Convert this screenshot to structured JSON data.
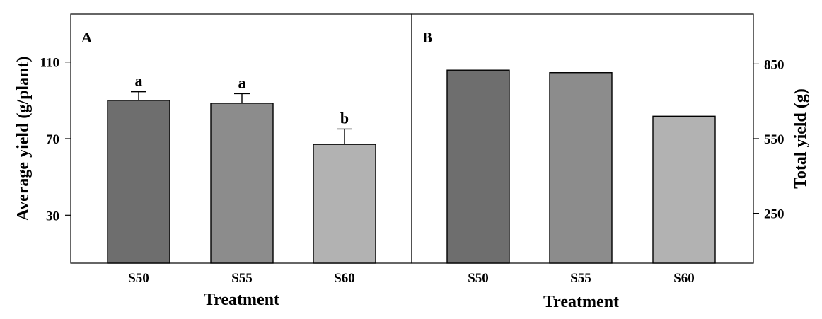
{
  "chart_data": [
    {
      "type": "bar",
      "panel_label": "A",
      "categories": [
        "S50",
        "S55",
        "S60"
      ],
      "values": [
        90,
        88.5,
        67
      ],
      "errors": [
        4.5,
        5,
        8
      ],
      "significance": [
        "a",
        "a",
        "b"
      ],
      "bar_colors": [
        "#6e6e6e",
        "#8c8c8c",
        "#b2b2b2"
      ],
      "xlabel": "Treatment",
      "ylabel": "Average yield (g/plant)",
      "ylim": [
        5,
        135
      ],
      "yticks": [
        30,
        70,
        110
      ],
      "y_axis_side": "left"
    },
    {
      "type": "bar",
      "panel_label": "B",
      "categories": [
        "S50",
        "S55",
        "S60"
      ],
      "values": [
        825,
        815,
        640
      ],
      "bar_colors": [
        "#6e6e6e",
        "#8c8c8c",
        "#b2b2b2"
      ],
      "xlabel": "Treatment",
      "ylabel": "Total yield (g)",
      "ylim": [
        50,
        1050
      ],
      "yticks": [
        250,
        550,
        850
      ],
      "y_axis_side": "right"
    }
  ]
}
